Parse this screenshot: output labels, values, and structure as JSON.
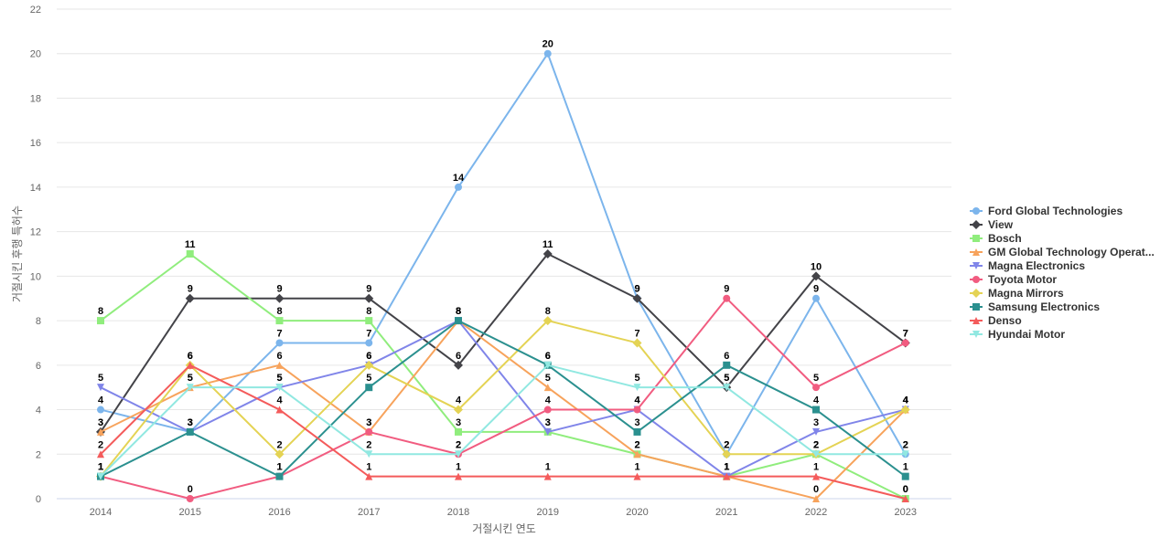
{
  "chart_data": {
    "type": "line",
    "title": "",
    "xlabel": "거절시킨 연도",
    "ylabel": "거절시킨 후행 특허수",
    "x": [
      "2014",
      "2015",
      "2016",
      "2017",
      "2018",
      "2019",
      "2020",
      "2021",
      "2022",
      "2023"
    ],
    "ylim": [
      0,
      22
    ],
    "yticks": [
      0,
      2,
      4,
      6,
      8,
      10,
      12,
      14,
      16,
      18,
      20,
      22
    ],
    "grid": true,
    "legend_position": "right",
    "series": [
      {
        "name": "Ford Global Technologies",
        "color": "#7cb5ec",
        "marker": "circle",
        "values": [
          4,
          3,
          7,
          7,
          14,
          20,
          9,
          2,
          9,
          2
        ]
      },
      {
        "name": "View",
        "color": "#434348",
        "marker": "diamond",
        "values": [
          3,
          9,
          9,
          9,
          6,
          11,
          9,
          5,
          10,
          7
        ]
      },
      {
        "name": "Bosch",
        "color": "#90ed7d",
        "marker": "square",
        "values": [
          8,
          11,
          8,
          8,
          3,
          3,
          2,
          1,
          2,
          0
        ]
      },
      {
        "name": "GM Global Technology Operat...",
        "color": "#f7a35c",
        "marker": "triangle",
        "values": [
          3,
          5,
          6,
          3,
          8,
          5,
          2,
          1,
          0,
          4
        ]
      },
      {
        "name": "Magna Electronics",
        "color": "#8085e9",
        "marker": "triangle-down",
        "values": [
          5,
          3,
          5,
          6,
          8,
          3,
          4,
          1,
          3,
          4
        ]
      },
      {
        "name": "Toyota Motor",
        "color": "#f15c80",
        "marker": "circle",
        "values": [
          1,
          0,
          1,
          3,
          2,
          4,
          4,
          9,
          5,
          7
        ]
      },
      {
        "name": "Magna Mirrors",
        "color": "#e4d354",
        "marker": "diamond",
        "values": [
          1,
          6,
          2,
          6,
          4,
          8,
          7,
          2,
          2,
          4
        ]
      },
      {
        "name": "Samsung Electronics",
        "color": "#2b908f",
        "marker": "square",
        "values": [
          1,
          3,
          1,
          5,
          8,
          6,
          3,
          6,
          4,
          1
        ]
      },
      {
        "name": "Denso",
        "color": "#f45b5b",
        "marker": "triangle",
        "values": [
          2,
          6,
          4,
          1,
          1,
          1,
          1,
          1,
          1,
          0
        ]
      },
      {
        "name": "Hyundai Motor",
        "color": "#91e8e1",
        "marker": "triangle-down",
        "values": [
          1,
          5,
          5,
          2,
          2,
          6,
          5,
          5,
          2,
          2
        ]
      }
    ]
  }
}
